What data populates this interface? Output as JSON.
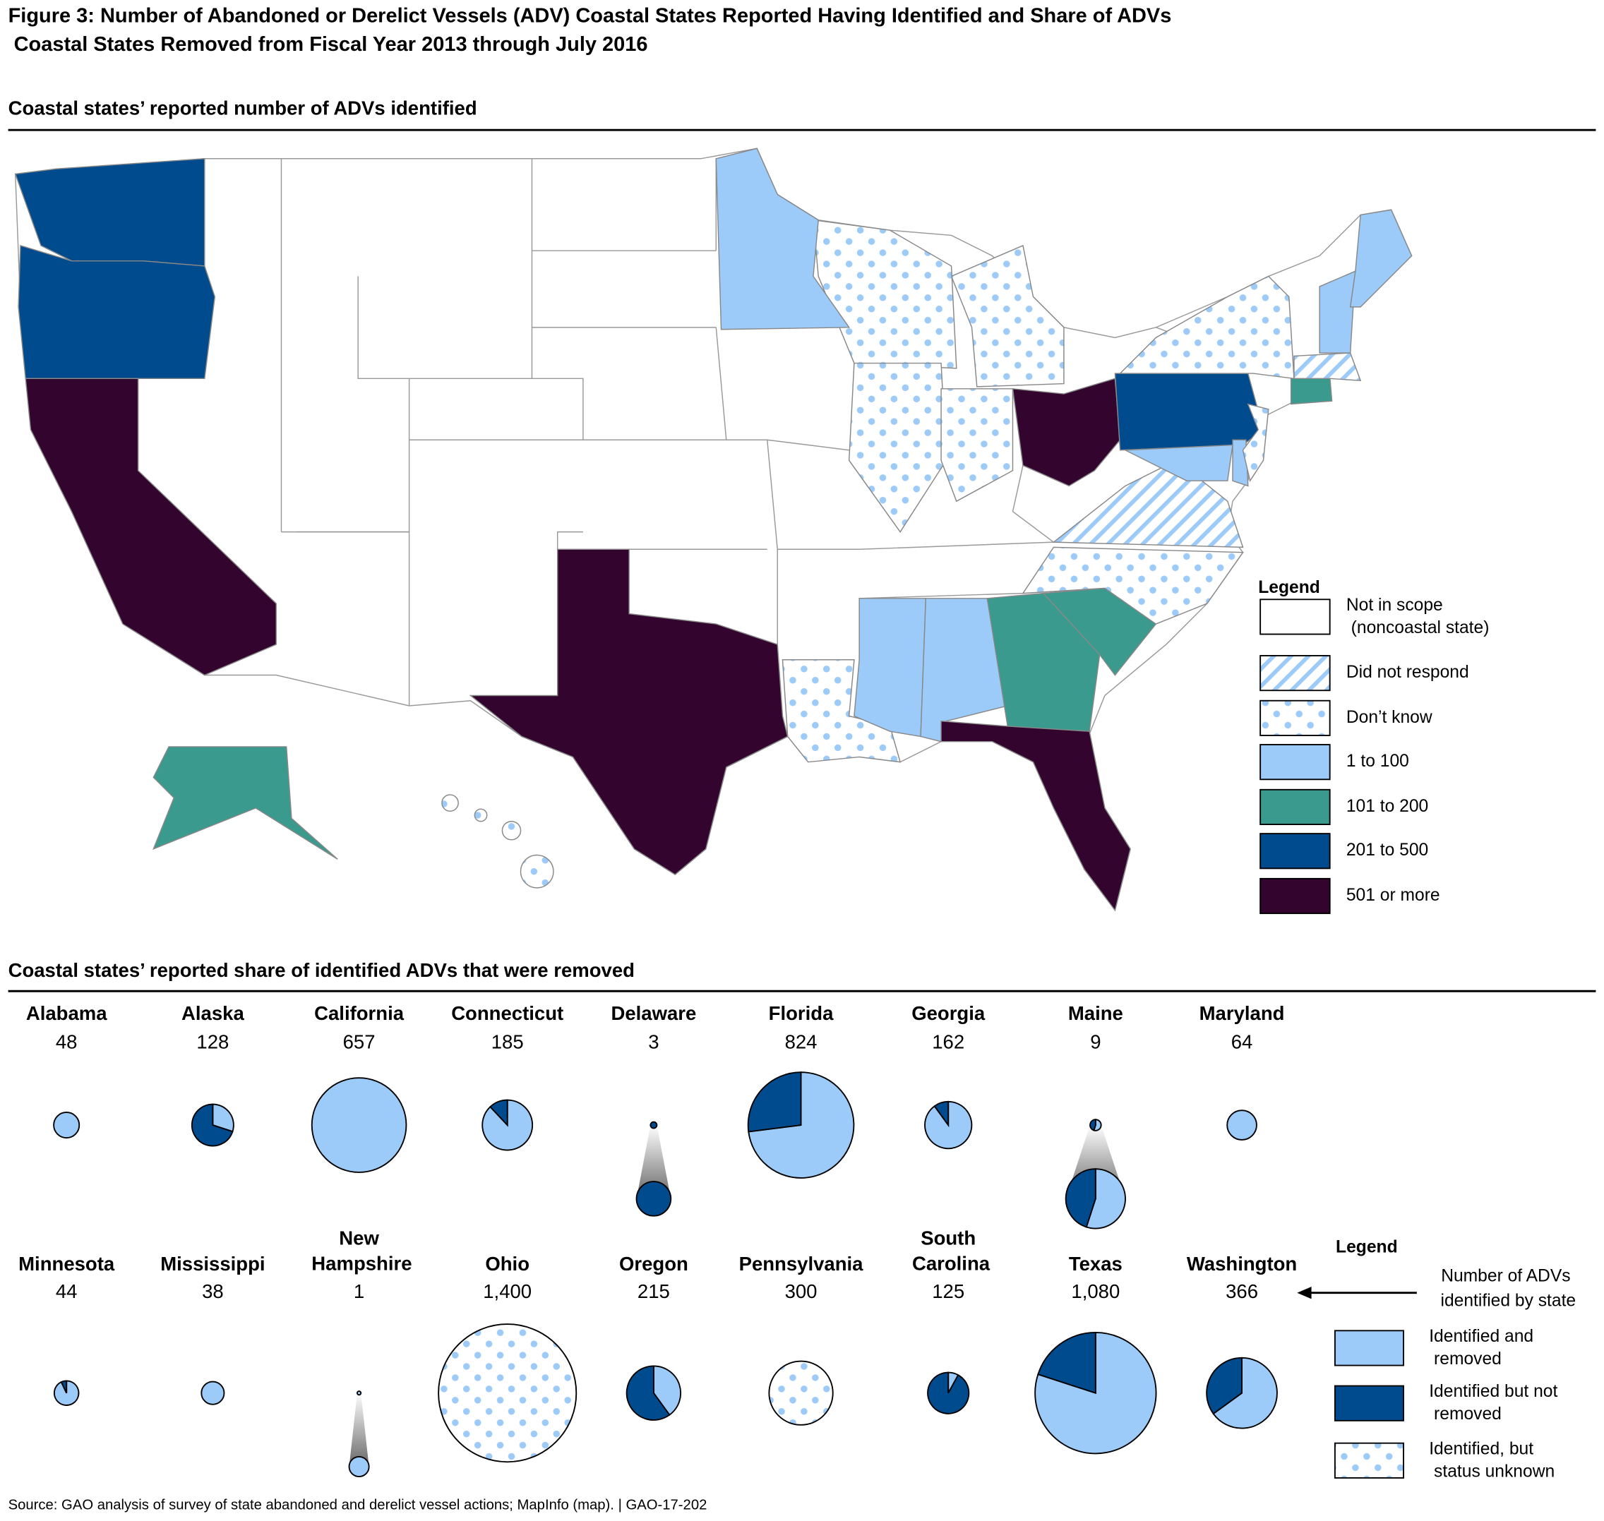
{
  "title": "Figure 3: Number of Abandoned or Derelict Vessels (ADV) Coastal States Reported Having Identified and Share of ADVs Coastal States Removed from Fiscal Year 2013 through July 2016",
  "map": {
    "subtitle": "Coastal states’ reported number of ADVs identified",
    "legend_title": "Legend",
    "legend": [
      {
        "label": "Not in scope (noncoastal state)",
        "color": "#ffffff",
        "pattern": "none"
      },
      {
        "label": "Did not respond",
        "color": "#9dcbf9",
        "pattern": "hatch"
      },
      {
        "label": "Don’t know",
        "color": "#9dcbf9",
        "pattern": "dots"
      },
      {
        "label": "1 to 100",
        "color": "#9dcbf9",
        "pattern": "none"
      },
      {
        "label": "101 to 200",
        "color": "#3a9a8e",
        "pattern": "none"
      },
      {
        "label": "201 to 500",
        "color": "#004b8d",
        "pattern": "none"
      },
      {
        "label": "501 or more",
        "color": "#33052e",
        "pattern": "none"
      }
    ]
  },
  "chart_data": {
    "type": "pie",
    "subtitle": "Coastal states’ reported share of identified ADVs that were removed",
    "legend_title": "Legend",
    "size_legend": "Number of ADVs identified by state",
    "series": [
      {
        "name": "Identified and removed",
        "color": "#9dcbf9",
        "pattern": "none"
      },
      {
        "name": "Identified but not removed",
        "color": "#004b8d",
        "pattern": "none"
      },
      {
        "name": "Identified, but status unknown",
        "color": "#9dcbf9",
        "pattern": "dots"
      }
    ],
    "pies": [
      {
        "name": "Alabama",
        "total": 48,
        "values": [
          100,
          0,
          0
        ]
      },
      {
        "name": "Alaska",
        "total": 128,
        "values": [
          30,
          70,
          0
        ]
      },
      {
        "name": "California",
        "total": 657,
        "values": [
          100,
          0,
          0
        ]
      },
      {
        "name": "Connecticut",
        "total": 185,
        "values": [
          88,
          12,
          0
        ]
      },
      {
        "name": "Delaware",
        "total": 3,
        "values": [
          0,
          100,
          0
        ]
      },
      {
        "name": "Florida",
        "total": 824,
        "values": [
          73,
          27,
          0
        ]
      },
      {
        "name": "Georgia",
        "total": 162,
        "values": [
          90,
          10,
          0
        ]
      },
      {
        "name": "Maine",
        "total": 9,
        "values": [
          55,
          45,
          0
        ]
      },
      {
        "name": "Maryland",
        "total": 64,
        "values": [
          100,
          0,
          0
        ]
      },
      {
        "name": "Minnesota",
        "total": 44,
        "values": [
          93,
          7,
          0
        ]
      },
      {
        "name": "Mississippi",
        "total": 38,
        "values": [
          100,
          0,
          0
        ]
      },
      {
        "name": "New Hampshire",
        "total": 1,
        "values": [
          100,
          0,
          0
        ]
      },
      {
        "name": "Ohio",
        "total": {
          "value": 1400,
          "label": "1,400"
        },
        "values": [
          0,
          0,
          100
        ]
      },
      {
        "name": "Oregon",
        "total": 215,
        "values": [
          40,
          60,
          0
        ]
      },
      {
        "name": "Pennsylvania",
        "total": 300,
        "values": [
          0,
          0,
          100
        ]
      },
      {
        "name": "South Carolina",
        "total": 125,
        "values": [
          8,
          92,
          0
        ]
      },
      {
        "name": "Texas",
        "total": {
          "value": 1080,
          "label": "1,080"
        },
        "values": [
          80,
          20,
          0
        ]
      },
      {
        "name": "Washington",
        "total": 366,
        "values": [
          65,
          35,
          0
        ]
      }
    ]
  },
  "source": "Source: GAO analysis of survey of state abandoned and derelict vessel actions; MapInfo (map).  |  GAO-17-202"
}
